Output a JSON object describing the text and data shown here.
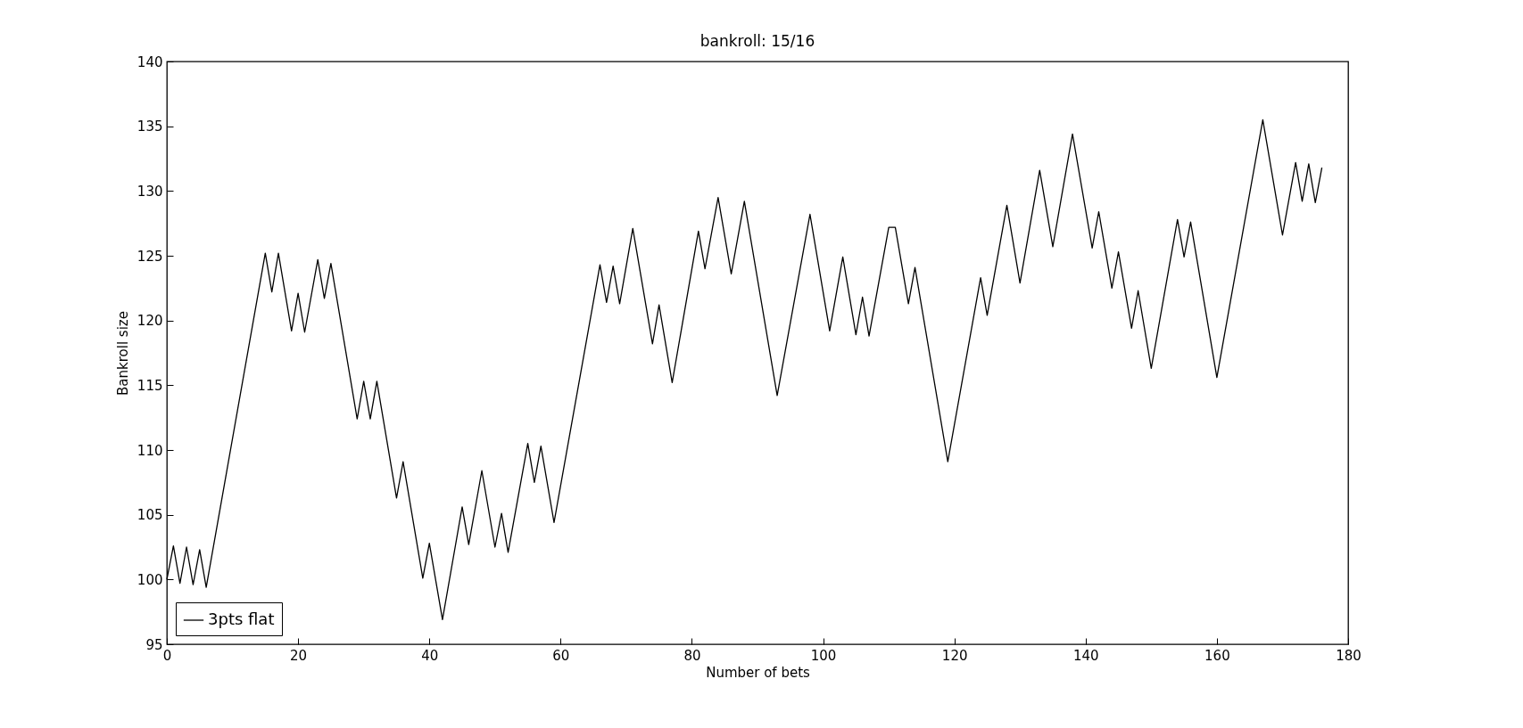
{
  "chart_data": {
    "type": "line",
    "title": "bankroll: 15/16",
    "xlabel": "Number of bets",
    "ylabel": "Bankroll size",
    "xlim": [
      0,
      180
    ],
    "xticks": [
      0,
      20,
      40,
      60,
      80,
      100,
      120,
      140,
      160,
      180
    ],
    "ylim": [
      95,
      140
    ],
    "yticks": [
      95,
      100,
      105,
      110,
      115,
      120,
      125,
      130,
      135,
      140
    ],
    "grid": false,
    "legend": "bottom left",
    "marker": "none",
    "line_style": "solid",
    "series": [
      {
        "name": "3pts flat",
        "color": "#000000",
        "x": [
          0,
          1,
          2,
          3,
          4,
          5,
          6,
          15,
          16,
          17,
          19,
          20,
          21,
          23,
          24,
          25,
          29,
          30,
          31,
          32,
          35,
          36,
          39,
          40,
          42,
          45,
          46,
          48,
          50,
          51,
          52,
          55,
          56,
          57,
          59,
          66,
          67,
          68,
          69,
          71,
          74,
          75,
          77,
          81,
          82,
          84,
          86,
          88,
          93,
          98,
          101,
          103,
          105,
          106,
          107,
          110,
          111,
          113,
          114,
          119,
          124,
          125,
          128,
          130,
          133,
          135,
          138,
          141,
          142,
          144,
          145,
          147,
          148,
          150,
          154,
          155,
          156,
          160,
          167,
          170,
          172,
          173,
          174,
          175,
          176
        ],
        "values": [
          100,
          102.6,
          99.7,
          102.5,
          99.6,
          102.3,
          99.4,
          125.2,
          122.2,
          125.2,
          119.2,
          122.1,
          119.1,
          124.7,
          121.7,
          124.4,
          112.4,
          115.3,
          112.4,
          115.3,
          106.3,
          109.1,
          100.1,
          102.8,
          96.9,
          105.6,
          102.7,
          108.4,
          102.5,
          105.1,
          102.1,
          110.5,
          107.5,
          110.3,
          104.4,
          124.3,
          121.4,
          124.2,
          121.3,
          127.1,
          118.2,
          121.2,
          115.2,
          126.9,
          124.0,
          129.5,
          123.6,
          129.2,
          114.2,
          128.2,
          119.2,
          124.9,
          118.9,
          121.8,
          118.8,
          127.2,
          127.2,
          121.3,
          124.1,
          109.1,
          123.3,
          120.4,
          128.9,
          122.9,
          131.6,
          125.7,
          134.4,
          125.6,
          128.4,
          122.5,
          125.3,
          119.4,
          122.3,
          116.3,
          127.8,
          124.9,
          127.6,
          115.6,
          135.5,
          126.6,
          132.2,
          129.2,
          132.1,
          129.1,
          131.8
        ]
      }
    ]
  }
}
